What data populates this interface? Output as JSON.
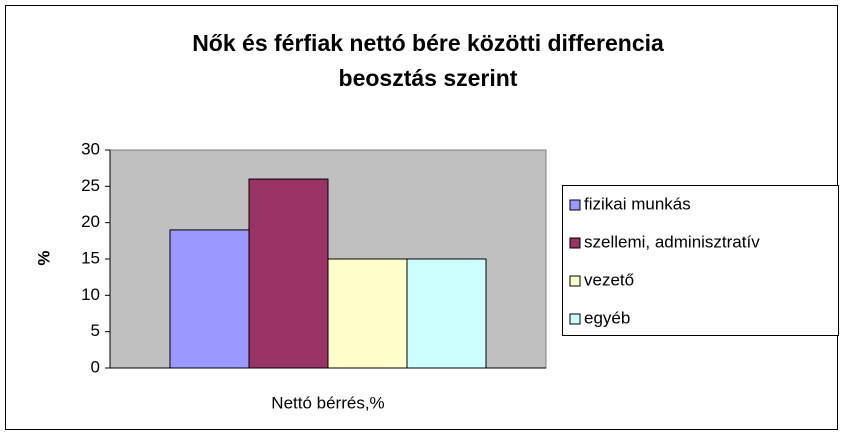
{
  "chart_data": {
    "type": "bar",
    "title": [
      "Nők és férfiak nettó bére közötti differencia",
      "beosztás  szerint"
    ],
    "y_label": "%",
    "categories": [
      "Nettó bérrés,%"
    ],
    "series": [
      {
        "name": "fizikai munkás",
        "color": "#9999ff",
        "values": [
          19
        ]
      },
      {
        "name": "szellemi, adminisztratív",
        "color": "#993366",
        "values": [
          26
        ]
      },
      {
        "name": "vezető",
        "color": "#ffffcc",
        "values": [
          15
        ]
      },
      {
        "name": "egyéb",
        "color": "#ccffff",
        "values": [
          15
        ]
      }
    ],
    "ylim": [
      0,
      30
    ],
    "yticks": [
      0,
      5,
      10,
      15,
      20,
      25,
      30
    ],
    "grid": false,
    "legend": "right",
    "plot_background": "#c0c0c0"
  }
}
